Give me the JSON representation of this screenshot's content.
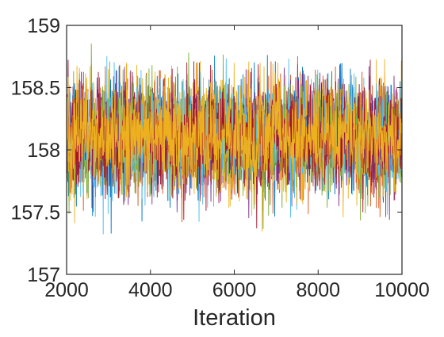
{
  "chart_data": {
    "type": "line",
    "title": "",
    "xlabel": "Iteration",
    "ylabel": "",
    "xlim": [
      2000,
      10000
    ],
    "ylim": [
      157,
      159
    ],
    "xticks": [
      2000,
      4000,
      6000,
      8000,
      10000
    ],
    "yticks": [
      157,
      157.5,
      158,
      158.5,
      159
    ],
    "xtick_labels": [
      "2000",
      "4000",
      "6000",
      "8000",
      "10000"
    ],
    "ytick_labels": [
      "157",
      "157.5",
      "158",
      "158.5",
      "159"
    ],
    "grid": false,
    "legend": "none",
    "series": [
      {
        "color": "#0072BD",
        "mean": 158.1,
        "std": 0.22,
        "min": 157.13,
        "max": 158.9,
        "samples_per_series": 8000
      },
      {
        "color": "#D95319",
        "mean": 158.1,
        "std": 0.22,
        "min": 157.25,
        "max": 158.8,
        "samples_per_series": 8000
      },
      {
        "color": "#EDB120",
        "mean": 158.1,
        "std": 0.22,
        "min": 157.27,
        "max": 158.75,
        "samples_per_series": 8000
      },
      {
        "color": "#7E2F8E",
        "mean": 158.1,
        "std": 0.22,
        "min": 157.3,
        "max": 158.7,
        "samples_per_series": 8000
      },
      {
        "color": "#77AC30",
        "mean": 158.1,
        "std": 0.22,
        "min": 157.3,
        "max": 158.88,
        "samples_per_series": 8000
      },
      {
        "color": "#4DBEEE",
        "mean": 158.1,
        "std": 0.22,
        "min": 157.07,
        "max": 158.8,
        "samples_per_series": 8000
      },
      {
        "color": "#A2142F",
        "mean": 158.1,
        "std": 0.22,
        "min": 157.2,
        "max": 158.75,
        "samples_per_series": 8000
      },
      {
        "color": "#EDB120",
        "mean": 158.1,
        "std": 0.21,
        "min": 157.35,
        "max": 158.7,
        "samples_per_series": 8000
      }
    ]
  }
}
